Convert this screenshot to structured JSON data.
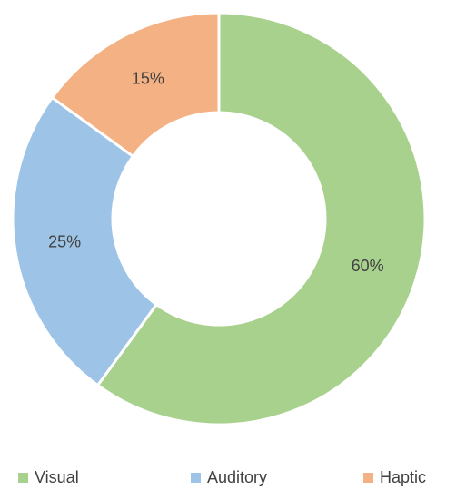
{
  "chart_data": {
    "type": "donut",
    "categories": [
      "Visual",
      "Auditory",
      "Haptic"
    ],
    "values": [
      60,
      25,
      15
    ],
    "value_labels": [
      "60%",
      "25%",
      "15%"
    ],
    "colors": [
      "#a9d18e",
      "#9dc3e6",
      "#f4b183"
    ],
    "legend": "bottom"
  }
}
